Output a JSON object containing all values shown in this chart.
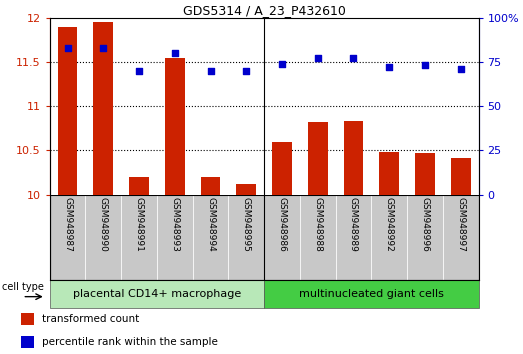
{
  "title": "GDS5314 / A_23_P432610",
  "samples": [
    "GSM948987",
    "GSM948990",
    "GSM948991",
    "GSM948993",
    "GSM948994",
    "GSM948995",
    "GSM948986",
    "GSM948988",
    "GSM948989",
    "GSM948992",
    "GSM948996",
    "GSM948997"
  ],
  "transformed_count": [
    11.9,
    11.95,
    10.2,
    11.55,
    10.2,
    10.12,
    10.6,
    10.82,
    10.83,
    10.48,
    10.47,
    10.42
  ],
  "percentile_rank": [
    83,
    83,
    70,
    80,
    70,
    70,
    74,
    77,
    77,
    72,
    73,
    71
  ],
  "group1_label": "placental CD14+ macrophage",
  "group2_label": "multinucleated giant cells",
  "group1_count": 6,
  "group2_count": 6,
  "ylim_left": [
    10,
    12
  ],
  "ylim_right": [
    0,
    100
  ],
  "yticks_left": [
    10,
    10.5,
    11,
    11.5,
    12
  ],
  "yticks_right": [
    0,
    25,
    50,
    75,
    100
  ],
  "bar_color": "#cc2200",
  "scatter_color": "#0000cc",
  "group1_bg": "#b8e8b8",
  "group2_bg": "#44cc44",
  "sample_bg": "#c8c8c8",
  "legend_bar_label": "transformed count",
  "legend_scatter_label": "percentile rank within the sample",
  "cell_type_label": "cell type",
  "right_axis_color": "#0000cc",
  "bar_width": 0.55
}
